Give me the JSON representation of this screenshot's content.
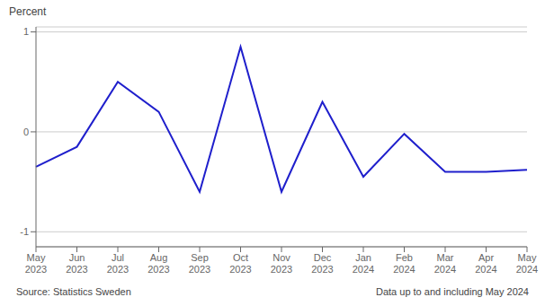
{
  "chart_data": {
    "type": "line",
    "y_label": "Percent",
    "annotations": [
      "Source: Statistics Sweden",
      "Data up to and including May 2024"
    ],
    "categories": [
      "May\n2023",
      "Jun\n2023",
      "Jul\n2023",
      "Aug\n2023",
      "Sep\n2023",
      "Oct\n2023",
      "Nov\n2023",
      "Dec\n2023",
      "Jan\n2024",
      "Feb\n2024",
      "Mar\n2024",
      "Apr\n2024",
      "May\n2024"
    ],
    "values": [
      -0.35,
      -0.15,
      0.5,
      0.2,
      -0.6,
      0.85,
      -0.6,
      0.3,
      -0.45,
      -0.02,
      -0.4,
      -0.4,
      -0.38
    ],
    "color": "#1f1fcc",
    "ylim": [
      -1.15,
      1.05
    ],
    "yticks": [
      -1,
      0,
      1
    ],
    "grid": true
  }
}
